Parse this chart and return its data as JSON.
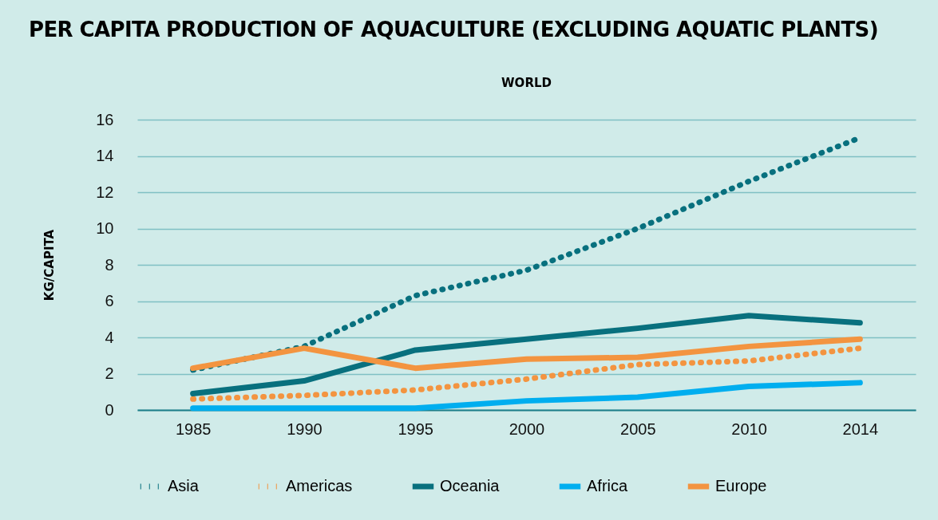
{
  "chart_data": {
    "type": "line",
    "title": "PER CAPITA PRODUCTION OF AQUACULTURE (EXCLUDING AQUATIC PLANTS)",
    "subtitle": "WORLD",
    "ylabel": "KG/CAPITA",
    "categories": [
      "1985",
      "1990",
      "1995",
      "2000",
      "2005",
      "2010",
      "2014"
    ],
    "series": [
      {
        "name": "Asia",
        "color": "#08707e",
        "line_style": "dotted",
        "values": [
          2.2,
          3.5,
          6.3,
          7.7,
          10.0,
          12.6,
          15.0
        ]
      },
      {
        "name": "Americas",
        "color": "#f39440",
        "line_style": "dotted",
        "values": [
          0.6,
          0.8,
          1.1,
          1.7,
          2.5,
          2.7,
          3.4
        ]
      },
      {
        "name": "Oceania",
        "color": "#08707e",
        "line_style": "solid",
        "values": [
          0.9,
          1.6,
          3.3,
          3.9,
          4.5,
          5.2,
          4.8
        ]
      },
      {
        "name": "Africa",
        "color": "#00aeef",
        "line_style": "solid",
        "values": [
          0.1,
          0.1,
          0.1,
          0.5,
          0.7,
          1.3,
          1.5
        ]
      },
      {
        "name": "Europe",
        "color": "#f39440",
        "line_style": "solid",
        "values": [
          2.3,
          3.4,
          2.3,
          2.8,
          2.9,
          3.5,
          3.9
        ]
      }
    ],
    "ylim": [
      0,
      16
    ],
    "yticks": [
      0,
      2,
      4,
      6,
      8,
      10,
      12,
      14,
      16
    ],
    "grid": "y",
    "legend": "bottom"
  }
}
